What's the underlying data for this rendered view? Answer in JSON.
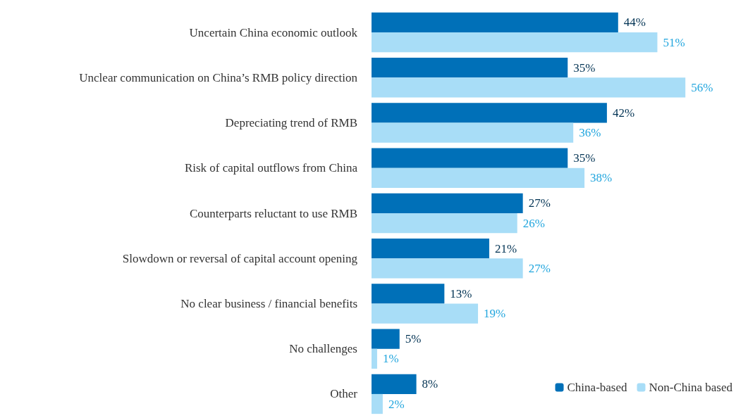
{
  "chart_data": {
    "type": "bar",
    "orientation": "horizontal",
    "legend": "bottom right",
    "categories": [
      "Uncertain China economic outlook",
      "Unclear communication on China’s RMB policy direction",
      "Depreciating trend of RMB",
      "Risk of capital outflows from China",
      "Counterparts reluctant to use RMB",
      "Slowdown or reversal of capital account opening",
      "No clear business / financial benefits",
      "No challenges",
      "Other"
    ],
    "series": [
      {
        "name": "China-based",
        "color": "#0070b8",
        "values": [
          44,
          35,
          42,
          35,
          27,
          21,
          13,
          5,
          8
        ],
        "value_labels": [
          "44%",
          "35%",
          "42%",
          "35%",
          "27%",
          "21%",
          "13%",
          "5%",
          "8%"
        ]
      },
      {
        "name": "Non-China based",
        "color": "#a8ddf7",
        "values": [
          51,
          56,
          36,
          38,
          26,
          27,
          19,
          1,
          2
        ],
        "value_labels": [
          "51%",
          "56%",
          "36%",
          "38%",
          "26%",
          "27%",
          "19%",
          "1%",
          "2%"
        ]
      }
    ]
  }
}
